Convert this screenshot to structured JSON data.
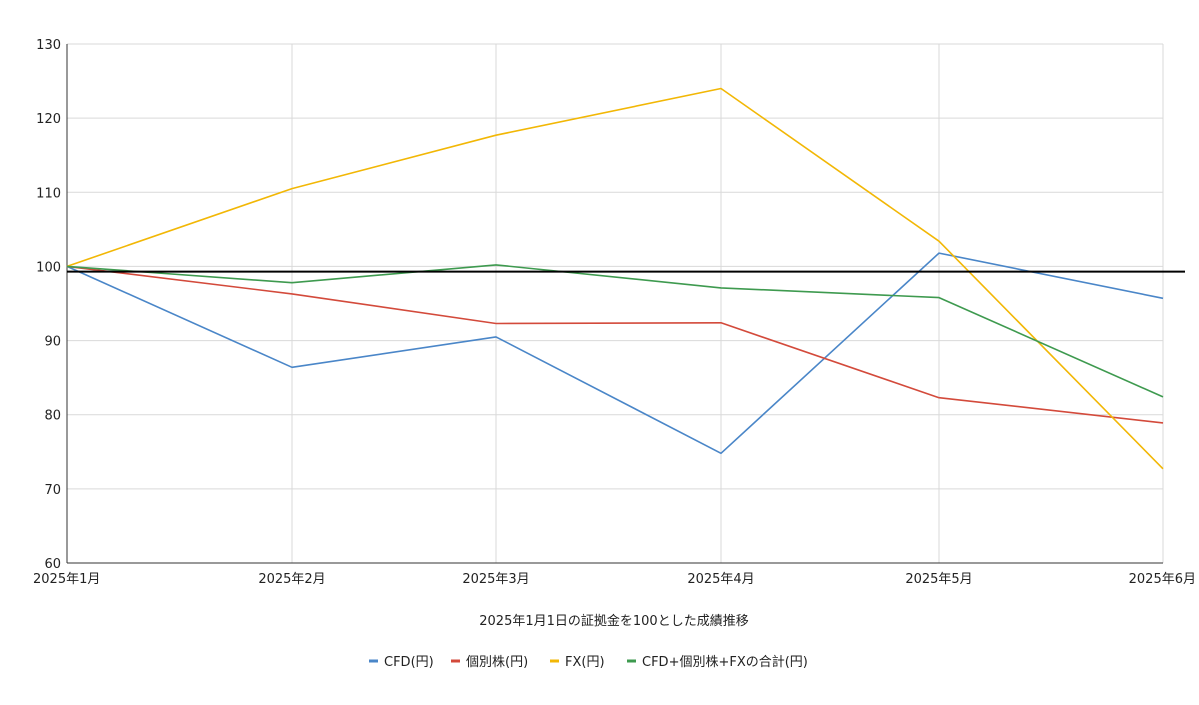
{
  "chart_data": {
    "type": "line",
    "categories": [
      "2025年1月",
      "2025年2月",
      "2025年3月",
      "2025年4月",
      "2025年5月",
      "2025年6月"
    ],
    "xlabel": "2025年1月1日の証拠金を100とした成績推移",
    "ylabel": "",
    "ylim": [
      60,
      130
    ],
    "yticks": [
      60,
      70,
      80,
      90,
      100,
      110,
      120,
      130
    ],
    "grid": true,
    "legend_position": "bottom",
    "reference_line": {
      "value": 99.3,
      "color": "#000000"
    },
    "series": [
      {
        "name": "CFD(円)",
        "color": "#4a86c8",
        "values": [
          100,
          86.4,
          90.5,
          74.8,
          101.8,
          95.7
        ]
      },
      {
        "name": "個別株(円)",
        "color": "#d34a3b",
        "values": [
          100,
          96.3,
          92.3,
          92.4,
          82.3,
          78.9
        ]
      },
      {
        "name": "FX(円)",
        "color": "#f2b705",
        "values": [
          100,
          110.5,
          117.7,
          124.0,
          103.4,
          72.7
        ]
      },
      {
        "name": "CFD+個別株+FXの合計(円)",
        "color": "#3e9a4f",
        "values": [
          100,
          97.8,
          100.2,
          97.1,
          95.8,
          82.4
        ]
      }
    ]
  }
}
